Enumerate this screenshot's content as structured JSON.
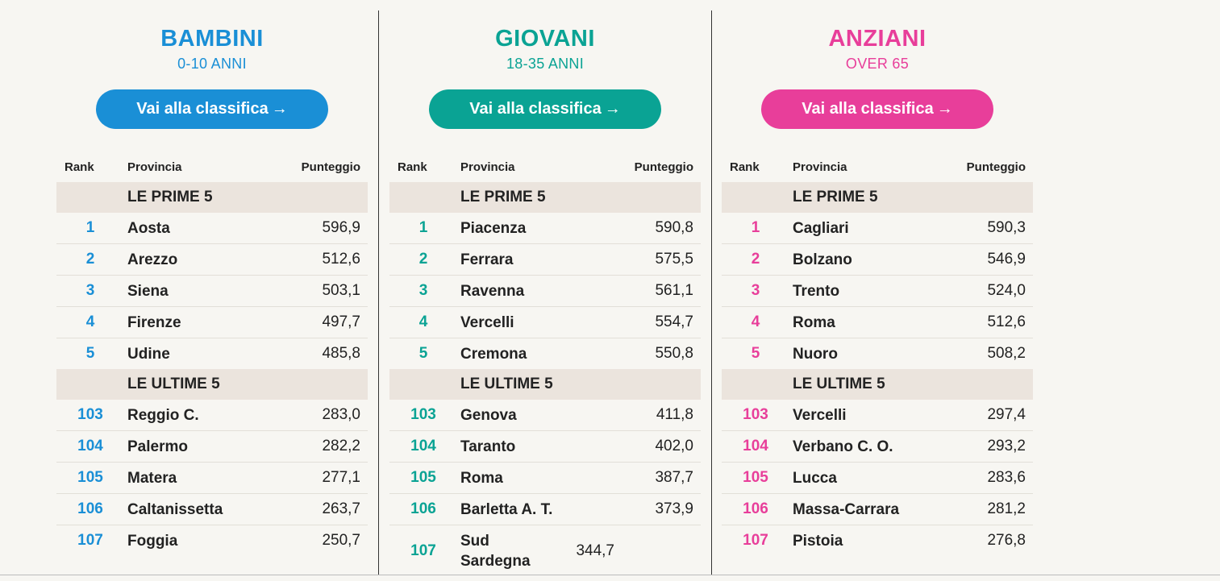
{
  "header": {
    "rank": "Rank",
    "province": "Provincia",
    "score": "Punteggio"
  },
  "sections": {
    "top": "LE PRIME 5",
    "bottom": "LE ULTIME 5"
  },
  "colors": {
    "bambini": "#1a8fd6",
    "giovani": "#0aa394",
    "anziani": "#e83e9a"
  },
  "columns": [
    {
      "title": "BAMBINI",
      "subtitle": "0-10 ANNI",
      "button": "Vai alla classifica",
      "arrow": "→",
      "top": [
        {
          "rank": "1",
          "province": "Aosta",
          "score": "596,9"
        },
        {
          "rank": "2",
          "province": "Arezzo",
          "score": "512,6"
        },
        {
          "rank": "3",
          "province": "Siena",
          "score": "503,1"
        },
        {
          "rank": "4",
          "province": "Firenze",
          "score": "497,7"
        },
        {
          "rank": "5",
          "province": "Udine",
          "score": "485,8"
        }
      ],
      "bottom": [
        {
          "rank": "103",
          "province": "Reggio C.",
          "score": "283,0"
        },
        {
          "rank": "104",
          "province": "Palermo",
          "score": "282,2"
        },
        {
          "rank": "105",
          "province": "Matera",
          "score": "277,1"
        },
        {
          "rank": "106",
          "province": "Caltanissetta",
          "score": "263,7"
        },
        {
          "rank": "107",
          "province": "Foggia",
          "score": "250,7"
        }
      ]
    },
    {
      "title": "GIOVANI",
      "subtitle": "18-35 ANNI",
      "button": "Vai alla classifica",
      "arrow": "→",
      "top": [
        {
          "rank": "1",
          "province": "Piacenza",
          "score": "590,8"
        },
        {
          "rank": "2",
          "province": "Ferrara",
          "score": "575,5"
        },
        {
          "rank": "3",
          "province": "Ravenna",
          "score": "561,1"
        },
        {
          "rank": "4",
          "province": "Vercelli",
          "score": "554,7"
        },
        {
          "rank": "5",
          "province": "Cremona",
          "score": "550,8"
        }
      ],
      "bottom": [
        {
          "rank": "103",
          "province": "Genova",
          "score": "411,8"
        },
        {
          "rank": "104",
          "province": "Taranto",
          "score": "402,0"
        },
        {
          "rank": "105",
          "province": "Roma",
          "score": "387,7"
        },
        {
          "rank": "106",
          "province": "Barletta A. T.",
          "score": "373,9"
        },
        {
          "rank": "107",
          "province": "Sud Sardegna",
          "score": "344,7"
        }
      ]
    },
    {
      "title": "ANZIANI",
      "subtitle": "OVER 65",
      "button": "Vai alla classifica",
      "arrow": "→",
      "top": [
        {
          "rank": "1",
          "province": "Cagliari",
          "score": "590,3"
        },
        {
          "rank": "2",
          "province": "Bolzano",
          "score": "546,9"
        },
        {
          "rank": "3",
          "province": "Trento",
          "score": "524,0"
        },
        {
          "rank": "4",
          "province": "Roma",
          "score": "512,6"
        },
        {
          "rank": "5",
          "province": "Nuoro",
          "score": "508,2"
        }
      ],
      "bottom": [
        {
          "rank": "103",
          "province": "Vercelli",
          "score": "297,4"
        },
        {
          "rank": "104",
          "province": "Verbano C. O.",
          "score": "293,2"
        },
        {
          "rank": "105",
          "province": "Lucca",
          "score": "283,6"
        },
        {
          "rank": "106",
          "province": "Massa-Carrara",
          "score": "281,2"
        },
        {
          "rank": "107",
          "province": "Pistoia",
          "score": "276,8"
        }
      ]
    }
  ]
}
